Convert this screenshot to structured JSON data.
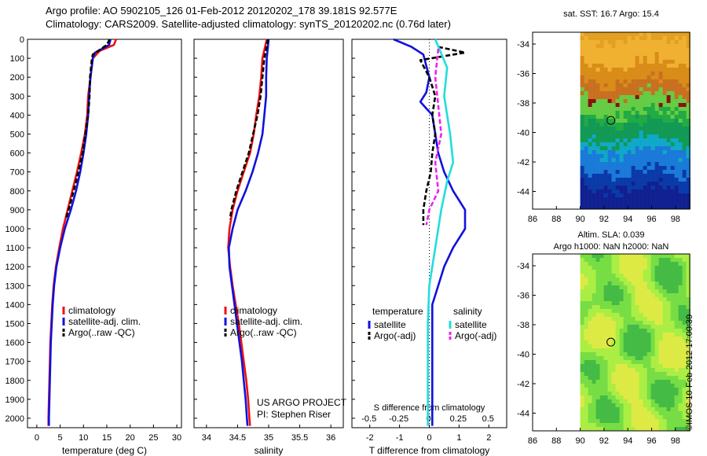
{
  "header": {
    "line1": "Argo profile: AO 5902105_126 01-Feb-2012 20120202_178 39.181S 92.577E",
    "line2": "Climatology: CARS2009. Satellite-adjusted climatology: synTS_20120202.nc (0.76d later)"
  },
  "watermark": "©IMOS 10-Feb-2012 17:00:39",
  "colors": {
    "climatology": "#ee1111",
    "satellite": "#1111dd",
    "argo": "#000000",
    "satellite_diff": "#22dddd",
    "argo_diff": "#ee22ee"
  },
  "chart_data": [
    {
      "type": "line",
      "panel": "temperature",
      "xlabel": "temperature (deg C)",
      "xlim": [
        -2,
        31
      ],
      "ylim": [
        2050,
        0
      ],
      "y_axis": "depth (inverted)",
      "x_ticks": [
        0,
        5,
        10,
        15,
        20,
        25,
        30
      ],
      "y_ticks": [
        0,
        100,
        200,
        300,
        400,
        500,
        600,
        700,
        800,
        900,
        1000,
        1100,
        1200,
        1300,
        1400,
        1500,
        1600,
        1700,
        1800,
        1900,
        2000
      ],
      "legend": [
        "climatology",
        "satellite-adj. clim.",
        "Argo(..raw -QC)"
      ],
      "legend_position": "lower-right",
      "series": [
        {
          "name": "climatology",
          "style": "solid",
          "color": "#ee1111",
          "points": [
            [
              17,
              0
            ],
            [
              16.5,
              30
            ],
            [
              13.5,
              60
            ],
            [
              12,
              100
            ],
            [
              11.5,
              200
            ],
            [
              11,
              300
            ],
            [
              10.8,
              400
            ],
            [
              10.3,
              500
            ],
            [
              9.5,
              600
            ],
            [
              8.6,
              700
            ],
            [
              7.6,
              800
            ],
            [
              6.6,
              900
            ],
            [
              5.6,
              1000
            ],
            [
              4.8,
              1100
            ],
            [
              4.1,
              1200
            ],
            [
              3.6,
              1300
            ],
            [
              3.3,
              1400
            ],
            [
              3.1,
              1500
            ],
            [
              2.9,
              1600
            ],
            [
              2.8,
              1700
            ],
            [
              2.7,
              1800
            ],
            [
              2.6,
              1900
            ],
            [
              2.5,
              2000
            ],
            [
              2.5,
              2040
            ]
          ]
        },
        {
          "name": "satellite-adj. clim.",
          "style": "solid",
          "color": "#1111dd",
          "points": [
            [
              15.8,
              0
            ],
            [
              15.5,
              30
            ],
            [
              12.5,
              70
            ],
            [
              12,
              100
            ],
            [
              11.5,
              200
            ],
            [
              11.2,
              300
            ],
            [
              11,
              400
            ],
            [
              10.6,
              500
            ],
            [
              10,
              600
            ],
            [
              9.3,
              700
            ],
            [
              8.4,
              800
            ],
            [
              7.3,
              900
            ],
            [
              6,
              1000
            ],
            [
              5,
              1100
            ],
            [
              4.2,
              1200
            ],
            [
              3.7,
              1300
            ],
            [
              3.4,
              1400
            ],
            [
              3.2,
              1500
            ],
            [
              3,
              1600
            ],
            [
              2.9,
              1700
            ],
            [
              2.8,
              1800
            ],
            [
              2.7,
              1900
            ],
            [
              2.6,
              2000
            ],
            [
              2.6,
              2040
            ]
          ]
        },
        {
          "name": "Argo(..raw -QC)",
          "style": "dashed",
          "color": "#000000",
          "points": [
            [
              15.6,
              0
            ],
            [
              15,
              30
            ],
            [
              12,
              80
            ],
            [
              11.8,
              100
            ],
            [
              11.4,
              200
            ],
            [
              11.3,
              300
            ],
            [
              11,
              400
            ],
            [
              10.4,
              500
            ],
            [
              9.8,
              600
            ],
            [
              8.9,
              700
            ],
            [
              7.9,
              800
            ],
            [
              6.8,
              900
            ],
            [
              6.2,
              950
            ]
          ]
        }
      ]
    },
    {
      "type": "line",
      "panel": "salinity",
      "xlabel": "salinity",
      "xlim": [
        33.8,
        36.2
      ],
      "ylim": [
        2050,
        0
      ],
      "x_ticks": [
        34,
        34.5,
        35,
        35.5,
        36
      ],
      "legend": [
        "climatology",
        "satellite-adj. clim.",
        "Argo(..raw -QC)"
      ],
      "legend_position": "lower-right",
      "annotation": [
        "US ARGO PROJECT",
        "PI: Stephen Riser"
      ],
      "series": [
        {
          "name": "climatology",
          "style": "solid",
          "color": "#ee1111",
          "points": [
            [
              34.97,
              0
            ],
            [
              34.9,
              100
            ],
            [
              34.88,
              200
            ],
            [
              34.85,
              300
            ],
            [
              34.8,
              400
            ],
            [
              34.76,
              500
            ],
            [
              34.7,
              600
            ],
            [
              34.6,
              700
            ],
            [
              34.5,
              800
            ],
            [
              34.42,
              900
            ],
            [
              34.37,
              1000
            ],
            [
              34.35,
              1100
            ],
            [
              34.38,
              1200
            ],
            [
              34.42,
              1300
            ],
            [
              34.47,
              1400
            ],
            [
              34.52,
              1500
            ],
            [
              34.56,
              1600
            ],
            [
              34.6,
              1700
            ],
            [
              34.64,
              1800
            ],
            [
              34.67,
              1900
            ],
            [
              34.69,
              2000
            ],
            [
              34.7,
              2040
            ]
          ]
        },
        {
          "name": "satellite-adj. clim.",
          "style": "solid",
          "color": "#1111dd",
          "points": [
            [
              35,
              0
            ],
            [
              34.97,
              100
            ],
            [
              34.96,
              200
            ],
            [
              34.96,
              300
            ],
            [
              34.93,
              400
            ],
            [
              34.9,
              500
            ],
            [
              34.83,
              600
            ],
            [
              34.74,
              700
            ],
            [
              34.63,
              800
            ],
            [
              34.5,
              900
            ],
            [
              34.42,
              1000
            ],
            [
              34.36,
              1100
            ],
            [
              34.37,
              1200
            ],
            [
              34.41,
              1300
            ],
            [
              34.45,
              1400
            ],
            [
              34.49,
              1500
            ],
            [
              34.53,
              1600
            ],
            [
              34.57,
              1700
            ],
            [
              34.6,
              1800
            ],
            [
              34.63,
              1900
            ],
            [
              34.65,
              2000
            ],
            [
              34.66,
              2040
            ]
          ]
        },
        {
          "name": "Argo(..raw -QC)",
          "style": "dashed",
          "color": "#000000",
          "points": [
            [
              34.99,
              0
            ],
            [
              34.93,
              100
            ],
            [
              34.9,
              200
            ],
            [
              34.87,
              300
            ],
            [
              34.82,
              400
            ],
            [
              34.75,
              500
            ],
            [
              34.68,
              600
            ],
            [
              34.58,
              700
            ],
            [
              34.48,
              800
            ],
            [
              34.4,
              900
            ],
            [
              34.38,
              950
            ]
          ]
        }
      ]
    },
    {
      "type": "line",
      "panel": "difference",
      "xlabel": "T difference from climatology",
      "xlabel_top": "S difference from climatology",
      "xlim": [
        -2.6,
        2.6
      ],
      "ylim": [
        2050,
        0
      ],
      "x_ticks_T": [
        -2,
        -1,
        0,
        1,
        2
      ],
      "x_ticks_S": [
        "-0.5",
        "-0.25",
        "0",
        "0.25",
        "0.5"
      ],
      "legend_headers": [
        "temperature",
        "salinity"
      ],
      "legend": [
        "satellite",
        "Argo(-adj)",
        "satellite",
        "Argo(-adj)"
      ],
      "series": [
        {
          "name": "temperature satellite",
          "style": "solid",
          "color": "#1111dd",
          "points": [
            [
              -1.2,
              0
            ],
            [
              -0.6,
              40
            ],
            [
              -0.2,
              80
            ],
            [
              0,
              200
            ],
            [
              -0.1,
              280
            ],
            [
              -0.3,
              330
            ],
            [
              0.1,
              400
            ],
            [
              0.2,
              500
            ],
            [
              0.3,
              600
            ],
            [
              0.5,
              700
            ],
            [
              0.8,
              800
            ],
            [
              1.2,
              900
            ],
            [
              1.2,
              1000
            ],
            [
              0.8,
              1100
            ],
            [
              0.5,
              1200
            ],
            [
              0.3,
              1300
            ],
            [
              0.1,
              1400
            ],
            [
              0.1,
              1600
            ],
            [
              0.1,
              1800
            ],
            [
              0.1,
              2000
            ],
            [
              0.1,
              2040
            ]
          ]
        },
        {
          "name": "temperature Argo(-adj)",
          "style": "dashed",
          "color": "#000000",
          "points": [
            [
              0.3,
              40
            ],
            [
              1.2,
              70
            ],
            [
              -0.3,
              110
            ],
            [
              0,
              200
            ],
            [
              0.2,
              300
            ],
            [
              0.1,
              400
            ],
            [
              0.2,
              500
            ],
            [
              0.1,
              600
            ],
            [
              0.05,
              700
            ],
            [
              -0.1,
              800
            ],
            [
              -0.2,
              900
            ],
            [
              -0.2,
              980
            ]
          ]
        },
        {
          "name": "salinity satellite",
          "style": "solid",
          "color": "#22dddd",
          "points": [
            [
              0.2,
              0
            ],
            [
              0.6,
              150
            ],
            [
              0.5,
              300
            ],
            [
              0.7,
              500
            ],
            [
              0.8,
              650
            ],
            [
              0.6,
              750
            ],
            [
              0.4,
              900
            ],
            [
              0.2,
              1100
            ],
            [
              0,
              1300
            ],
            [
              -0.05,
              1500
            ],
            [
              -0.05,
              1700
            ],
            [
              -0.05,
              1900
            ],
            [
              -0.05,
              2040
            ]
          ]
        },
        {
          "name": "salinity Argo(-adj)",
          "style": "dashed",
          "color": "#ee22ee",
          "points": [
            [
              0.3,
              50
            ],
            [
              0.2,
              200
            ],
            [
              0.3,
              350
            ],
            [
              0.4,
              500
            ],
            [
              0.2,
              650
            ],
            [
              0.3,
              800
            ],
            [
              0,
              900
            ],
            [
              -0.1,
              980
            ]
          ]
        }
      ]
    },
    {
      "type": "heatmap",
      "panel": "sst-map",
      "title": "sat. SST: 16.7 Argo: 15.4",
      "x_ticks": [
        86,
        88,
        90,
        92,
        94,
        96,
        98
      ],
      "y_ticks": [
        -34,
        -36,
        -38,
        -40,
        -42,
        -44
      ],
      "xlim": [
        86,
        99.2
      ],
      "ylim": [
        -45.2,
        -33.2
      ],
      "argo_position": [
        92.577,
        -39.181
      ],
      "data_extent_x": [
        90,
        99.2
      ]
    },
    {
      "type": "heatmap",
      "panel": "sla-map",
      "title": [
        "Altim. SLA: 0.039",
        "Argo h1000: NaN h2000: NaN"
      ],
      "x_ticks": [
        86,
        88,
        90,
        92,
        94,
        96,
        98
      ],
      "y_ticks": [
        -34,
        -36,
        -38,
        -40,
        -42,
        -44
      ],
      "xlim": [
        86,
        99.2
      ],
      "ylim": [
        -45.2,
        -33.2
      ],
      "argo_position": [
        92.577,
        -39.181
      ],
      "data_extent_x": [
        90,
        99.2
      ]
    }
  ]
}
